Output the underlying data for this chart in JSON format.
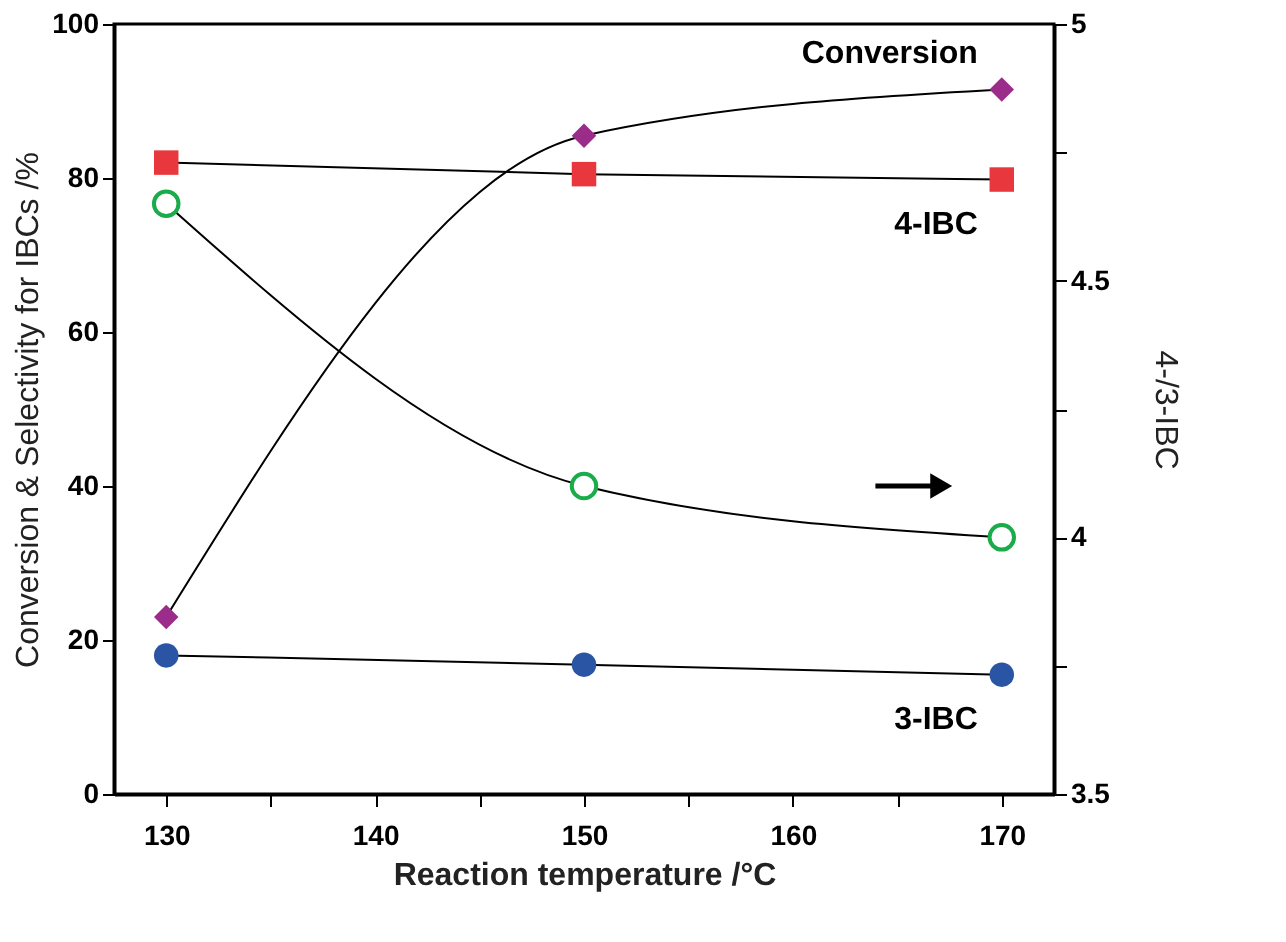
{
  "chart_data": {
    "type": "line",
    "xlabel": "Reaction temperature /°C",
    "ylabel": "Conversion & Selectivity for IBCs /%",
    "y2label": "4-/3-IBC",
    "x": [
      130,
      150,
      170
    ],
    "xlim": [
      127.5,
      172.5
    ],
    "xticks": [
      130,
      {
        "value": 135,
        "label": null
      },
      140,
      {
        "value": 145,
        "label": null
      },
      150,
      {
        "value": 155,
        "label": null
      },
      160,
      {
        "value": 165,
        "label": null
      },
      170
    ],
    "ylim": [
      0,
      100
    ],
    "yticks": [
      0,
      20,
      40,
      60,
      80,
      100
    ],
    "y2lim": [
      3.5,
      5
    ],
    "y2ticks": [
      3.5,
      {
        "value": 3.75,
        "label": null
      },
      4,
      {
        "value": 4.25,
        "label": null
      },
      4.5,
      {
        "value": 4.75,
        "label": null
      },
      5
    ],
    "grid": false,
    "legend": false,
    "line_style": "solid",
    "series": [
      {
        "name": "Conversion",
        "color": "#9b2c8a",
        "marker": "diamond",
        "values": [
          23,
          85.5,
          91.5
        ]
      },
      {
        "name": "4-IBC",
        "color": "#e8383d",
        "marker": "square",
        "values": [
          82,
          80.5,
          79.8
        ]
      },
      {
        "color": "#1aab4a",
        "marker": "circle",
        "axis": "y2",
        "values": [
          4.65,
          4.1,
          4.0
        ]
      },
      {
        "name": "3-IBC",
        "color": "#2a55a5",
        "marker": "circle",
        "values": [
          18,
          16.8,
          15.5
        ]
      }
    ]
  }
}
